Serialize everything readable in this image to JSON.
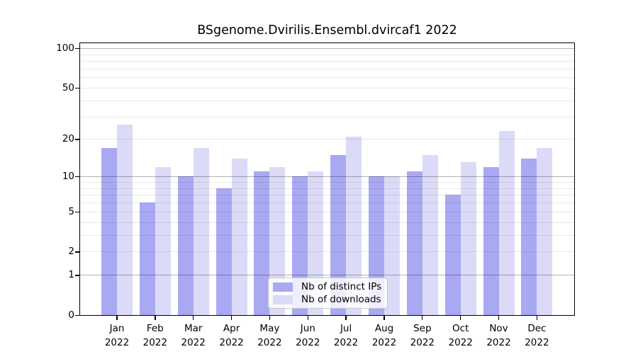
{
  "chart_data": {
    "type": "bar",
    "title": "BSgenome.Dvirilis.Ensembl.dvircaf1 2022",
    "y_scale": "log1p",
    "ylim": [
      0,
      100
    ],
    "y_ticks": [
      "0",
      "1",
      "2",
      "5",
      "10",
      "20",
      "50",
      "100"
    ],
    "y_tick_values": [
      0,
      1,
      2,
      5,
      10,
      20,
      50,
      100
    ],
    "gridlines": {
      "dark_at": [
        1,
        10,
        100
      ],
      "light_at": [
        2,
        3,
        4,
        5,
        6,
        7,
        8,
        9,
        20,
        30,
        40,
        50,
        60,
        70,
        80,
        90
      ]
    },
    "categories": [
      "Jan",
      "Feb",
      "Mar",
      "Apr",
      "May",
      "Jun",
      "Jul",
      "Aug",
      "Sep",
      "Oct",
      "Nov",
      "Dec"
    ],
    "x_year": "2022",
    "series": [
      {
        "name": "Nb of distinct IPs",
        "color": "#a9a9f3",
        "values": [
          17,
          6,
          10,
          8,
          11,
          10,
          15,
          10,
          11,
          7,
          12,
          14
        ]
      },
      {
        "name": "Nb of downloads",
        "color": "#dbdbf7",
        "values": [
          26,
          12,
          17,
          14,
          12,
          11,
          21,
          10,
          15,
          13,
          23,
          17
        ]
      }
    ],
    "legend_position": "bottom-center",
    "grid": true,
    "colors": {
      "axis": "#000000",
      "background": "#ffffff",
      "legend_border": "#c9c9c9"
    }
  }
}
